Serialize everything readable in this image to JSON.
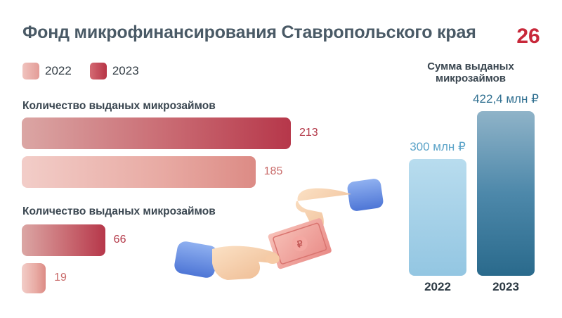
{
  "title": "Фонд микрофинансирования Ставропольского края",
  "logo_text": "26",
  "legend": [
    {
      "label": "2022",
      "color": "#e7a9a4"
    },
    {
      "label": "2023",
      "color": "#c04a56"
    }
  ],
  "colors": {
    "red_dark": "#b93848",
    "red_light": "#e8b7b2",
    "blue_light": "#a7d2e8",
    "blue_dark": "#2f708f"
  },
  "chart_data": [
    {
      "type": "bar",
      "orientation": "horizontal",
      "title": "Количество выданых микрозаймов",
      "series": [
        {
          "name": "2023",
          "values": [
            213
          ]
        },
        {
          "name": "2022",
          "values": [
            185
          ]
        }
      ],
      "value_labels": [
        "213",
        "185"
      ]
    },
    {
      "type": "bar",
      "orientation": "horizontal",
      "title": "Количество выданых микрозаймов",
      "series": [
        {
          "name": "2023",
          "values": [
            66
          ]
        },
        {
          "name": "2022",
          "values": [
            19
          ]
        }
      ],
      "value_labels": [
        "66",
        "19"
      ]
    },
    {
      "type": "bar",
      "orientation": "vertical",
      "title": "Сумма выданых микрозаймов",
      "categories": [
        "2022",
        "2023"
      ],
      "values": [
        300,
        422.4
      ],
      "value_labels": [
        "300 млн ₽",
        "422,4 млн ₽"
      ],
      "unit": "млн ₽"
    }
  ]
}
